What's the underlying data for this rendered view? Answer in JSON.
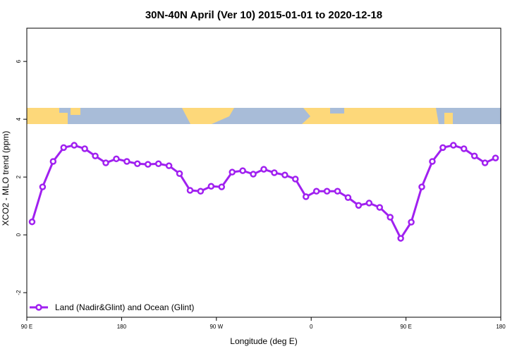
{
  "chart_data": {
    "type": "line",
    "title": "30N-40N April (Ver 10)   2015-01-01 to 2020-12-18",
    "xlabel": "Longitude (deg E)",
    "ylabel": "XCO2 - MLO trend (ppm)",
    "x": [
      95,
      105,
      115,
      125,
      135,
      145,
      155,
      165,
      175,
      185,
      195,
      205,
      215,
      225,
      235,
      245,
      255,
      265,
      275,
      285,
      295,
      305,
      315,
      325,
      335,
      345,
      355,
      365,
      375,
      385,
      395,
      405,
      415,
      425,
      435,
      445,
      455,
      465,
      475,
      485,
      495,
      505,
      515,
      525,
      535
    ],
    "series": [
      {
        "name": "Land (Nadir&Glint) and Ocean (Glint)",
        "color": "#a020f0",
        "values": [
          0.45,
          1.66,
          2.54,
          3.02,
          3.1,
          2.98,
          2.73,
          2.49,
          2.63,
          2.54,
          2.46,
          2.44,
          2.46,
          2.39,
          2.12,
          1.54,
          1.51,
          1.68,
          1.66,
          2.17,
          2.22,
          2.1,
          2.27,
          2.15,
          2.07,
          1.93,
          1.32,
          1.51,
          1.51,
          1.51,
          1.29,
          1.02,
          1.1,
          0.95,
          0.61,
          -0.12,
          0.44,
          1.66,
          2.54,
          3.02,
          3.1,
          2.98,
          2.73,
          2.49,
          2.66
        ]
      }
    ],
    "xlim": [
      90,
      540
    ],
    "xticks": [
      {
        "value": 90,
        "label": "90 E"
      },
      180,
      {
        "value": 270,
        "label": "90 W"
      },
      {
        "value": 360,
        "label": "0"
      },
      {
        "value": 450,
        "label": "90 E"
      },
      {
        "value": 540,
        "label": "180"
      }
    ],
    "ylim": [
      -2.85,
      7.15
    ],
    "yticks": [
      -2,
      0,
      2,
      4,
      6
    ],
    "legend": "bottom-left"
  }
}
